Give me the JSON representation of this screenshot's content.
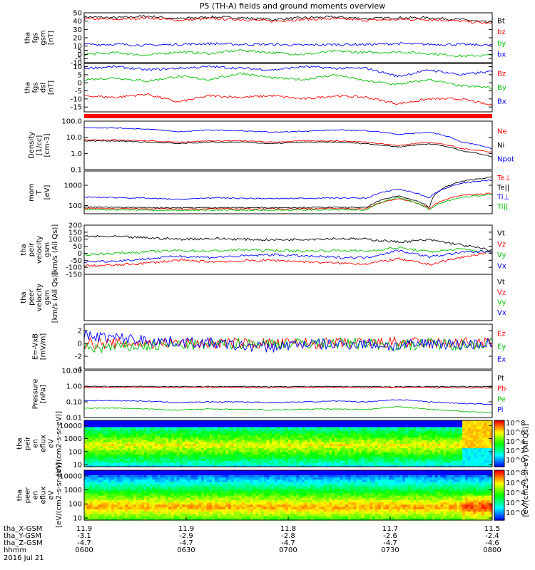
{
  "title": "P5 (TH-A) fields and ground moments overview",
  "chart_data": [
    {
      "type": "line",
      "panel": "fgs_gsm_mag",
      "ylabel": [
        "tha",
        "fgs",
        "gsm",
        "[nT]"
      ],
      "ylim": [
        -10,
        50
      ],
      "yticks": [
        -10,
        -5,
        0,
        5,
        10,
        20,
        30,
        40,
        50
      ],
      "series": [
        {
          "name": "Bt",
          "color": "#000000",
          "values": [
            45,
            44,
            46,
            43,
            45,
            44,
            42,
            44,
            45,
            43,
            44,
            44,
            42,
            38
          ]
        },
        {
          "name": "bz",
          "color": "#ff0000",
          "values": [
            43,
            42,
            44,
            41,
            43,
            42,
            40,
            42,
            43,
            41,
            42,
            42,
            40,
            37
          ]
        },
        {
          "name": "by",
          "color": "#00c000",
          "values": [
            0,
            2,
            -1,
            3,
            1,
            5,
            2,
            0,
            4,
            2,
            3,
            1,
            -2,
            -1
          ]
        },
        {
          "name": "bx",
          "color": "#0000ff",
          "values": [
            12,
            12,
            11,
            12,
            13,
            12,
            12,
            11,
            12,
            12,
            13,
            12,
            12,
            11
          ]
        }
      ]
    },
    {
      "type": "line",
      "panel": "fgs_dsl",
      "ylabel": [
        "tha",
        "fgs",
        "dsl",
        "[nT]"
      ],
      "ylim": [
        -18,
        12
      ],
      "yticks": [
        -15,
        -10,
        -5,
        0,
        5,
        10
      ],
      "series": [
        {
          "name": "Bz",
          "color": "#ff0000",
          "values": [
            -8,
            -9,
            -7,
            -12,
            -8,
            -9,
            -8,
            -10,
            -8,
            -9,
            -13,
            -10,
            -10,
            -14
          ]
        },
        {
          "name": "By",
          "color": "#00c000",
          "values": [
            2,
            3,
            1,
            4,
            2,
            6,
            3,
            2,
            5,
            1,
            -1,
            2,
            -2,
            -3
          ]
        },
        {
          "name": "Bx",
          "color": "#0000ff",
          "values": [
            9,
            10,
            8,
            9,
            10,
            9,
            8,
            10,
            9,
            9,
            4,
            8,
            5,
            7
          ]
        }
      ]
    },
    {
      "type": "line",
      "panel": "density",
      "ylabel": [
        "Density",
        "[1/cc]",
        "[cm-3]"
      ],
      "ylim": [
        0.1,
        100
      ],
      "log": true,
      "yticks": [
        0.1,
        1.0,
        10.0,
        100.0
      ],
      "ytick_labels": [
        "0.1",
        "1.0",
        "10.0",
        "100.0"
      ],
      "series": [
        {
          "name": "Ne",
          "color": "#ff0000",
          "values": [
            7,
            7,
            6,
            5,
            6,
            6,
            5,
            6,
            6,
            5,
            3,
            5,
            2,
            1.2
          ]
        },
        {
          "name": "Ni",
          "color": "#000000",
          "values": [
            6,
            6,
            5,
            4,
            5,
            5,
            4,
            5,
            5,
            4,
            2.5,
            4,
            1.5,
            0.6
          ]
        },
        {
          "name": "Npot",
          "color": "#0000ff",
          "values": [
            40,
            38,
            32,
            22,
            28,
            25,
            20,
            24,
            28,
            26,
            15,
            20,
            5,
            2
          ]
        }
      ]
    },
    {
      "type": "line",
      "panel": "temperature",
      "ylabel": [
        "mom",
        "T",
        "[eV]"
      ],
      "ylim": [
        40,
        5000
      ],
      "log": true,
      "yticks": [
        100,
        1000
      ],
      "ytick_labels": [
        "100",
        "1000"
      ],
      "series": [
        {
          "name": "Te⊥",
          "color": "#ff0000",
          "values": [
            75,
            72,
            70,
            68,
            70,
            69,
            70,
            71,
            72,
            70,
            220,
            70,
            330,
            400
          ]
        },
        {
          "name": "Te||",
          "color": "#000000",
          "values": [
            85,
            82,
            80,
            78,
            80,
            79,
            80,
            81,
            82,
            80,
            300,
            80,
            1500,
            2500
          ]
        },
        {
          "name": "Ti⊥",
          "color": "#0000ff",
          "values": [
            260,
            250,
            230,
            200,
            240,
            230,
            220,
            230,
            240,
            230,
            650,
            230,
            1200,
            1800
          ]
        },
        {
          "name": "Ti||",
          "color": "#00c000",
          "values": [
            65,
            63,
            60,
            58,
            60,
            59,
            60,
            61,
            62,
            60,
            250,
            60,
            250,
            350
          ]
        }
      ]
    },
    {
      "type": "line",
      "panel": "peir_velocity",
      "ylabel": [
        "tha",
        "peir",
        "velocity",
        "gsm",
        "[km/s (All Qs)]"
      ],
      "ylim": [
        -150,
        200
      ],
      "yticks": [
        -150,
        -100,
        -50,
        0,
        50,
        100,
        150,
        200
      ],
      "series": [
        {
          "name": "Vt",
          "color": "#000000",
          "values": [
            120,
            118,
            110,
            100,
            105,
            100,
            95,
            100,
            105,
            100,
            80,
            95,
            60,
            20
          ]
        },
        {
          "name": "Vz",
          "color": "#ff0000",
          "values": [
            -90,
            -85,
            -70,
            -50,
            -60,
            -55,
            -50,
            -60,
            -70,
            -75,
            -40,
            -80,
            -30,
            10
          ]
        },
        {
          "name": "Vy",
          "color": "#00c000",
          "values": [
            -10,
            0,
            10,
            20,
            15,
            25,
            20,
            15,
            20,
            15,
            40,
            10,
            30,
            5
          ]
        },
        {
          "name": "Vx",
          "color": "#0000ff",
          "values": [
            -60,
            -55,
            -40,
            -20,
            -30,
            -20,
            -10,
            -20,
            -30,
            -30,
            20,
            -25,
            5,
            15
          ]
        }
      ]
    },
    {
      "type": "line",
      "panel": "peer_velocity",
      "ylabel": [
        "tha",
        "peer",
        "velocity",
        "gsm",
        "[km/s (All Qs)]"
      ],
      "series": [
        {
          "name": "Vt",
          "color": "#000000",
          "values": []
        },
        {
          "name": "Vz",
          "color": "#ff0000",
          "values": []
        },
        {
          "name": "Vy",
          "color": "#00c000",
          "values": []
        },
        {
          "name": "Vx",
          "color": "#0000ff",
          "values": []
        }
      ]
    },
    {
      "type": "line",
      "panel": "efield",
      "ylabel": [
        "E=-VxB",
        "[mV/m]"
      ],
      "ylim": [
        -4,
        3
      ],
      "yticks": [
        -4,
        -2,
        0,
        2
      ],
      "series": [
        {
          "name": "Ez",
          "color": "#ff0000",
          "values": [
            0,
            0,
            0,
            0.1,
            0,
            0,
            0,
            0,
            0,
            0,
            0.2,
            0,
            0.1,
            0
          ]
        },
        {
          "name": "Ey",
          "color": "#00c000",
          "values": [
            -0.8,
            -0.6,
            -0.4,
            -0.2,
            -0.2,
            0,
            0,
            0,
            0,
            0,
            -0.3,
            0,
            -0.2,
            0
          ]
        },
        {
          "name": "Ex",
          "color": "#0000ff",
          "values": [
            1.2,
            0.9,
            0.5,
            0.2,
            0.1,
            -0.4,
            -0.6,
            0,
            -0.2,
            0,
            -0.5,
            0.1,
            -0.2,
            0
          ]
        }
      ]
    },
    {
      "type": "line",
      "panel": "pressure",
      "ylabel": [
        "Pressure",
        "[nPa]"
      ],
      "ylim": [
        0.01,
        10
      ],
      "log": true,
      "yticks": [
        0.01,
        0.1,
        1.0,
        10.0
      ],
      "ytick_labels": [
        "0.01",
        "0.10",
        "1.00",
        "10.00"
      ],
      "series": [
        {
          "name": "Pt",
          "color": "#000000",
          "values": [
            0.95,
            0.95,
            0.94,
            0.93,
            0.94,
            0.94,
            0.93,
            0.94,
            0.95,
            0.94,
            0.9,
            0.94,
            0.93,
            0.92
          ]
        },
        {
          "name": "Pb",
          "color": "#ff0000",
          "values": [
            0.85,
            0.84,
            0.86,
            0.82,
            0.85,
            0.83,
            0.8,
            0.83,
            0.85,
            0.82,
            0.83,
            0.83,
            0.8,
            0.75
          ]
        },
        {
          "name": "Pe",
          "color": "#00c000",
          "values": [
            0.04,
            0.04,
            0.035,
            0.03,
            0.035,
            0.033,
            0.03,
            0.034,
            0.035,
            0.032,
            0.05,
            0.033,
            0.025,
            0.02
          ]
        },
        {
          "name": "Pi",
          "color": "#0000ff",
          "values": [
            0.12,
            0.12,
            0.11,
            0.09,
            0.1,
            0.1,
            0.09,
            0.1,
            0.11,
            0.1,
            0.14,
            0.1,
            0.08,
            0.07
          ]
        }
      ]
    },
    {
      "type": "heatmap",
      "panel": "peir_spectrogram",
      "ylabel": [
        "tha",
        "peir",
        "en",
        "eflux",
        "eV",
        "[eV/(cm2-s-sr-eV)]"
      ],
      "ylim": [
        7,
        25000
      ],
      "log": true,
      "yticks": [
        10,
        100,
        1000,
        10000
      ],
      "ytick_labels": [
        "10",
        "100",
        "1000",
        "10000"
      ],
      "colorbar_ticks": [
        "10^8",
        "10^6",
        "10^4",
        "10^2",
        "10^0"
      ]
    },
    {
      "type": "heatmap",
      "panel": "peer_spectrogram",
      "ylabel": [
        "tha",
        "peer",
        "en",
        "eflux",
        "eV",
        "[eV/(cm2-s-sr-eV)]"
      ],
      "ylim": [
        7,
        25000
      ],
      "log": true,
      "yticks": [
        10,
        100,
        1000,
        10000
      ],
      "ytick_labels": [
        "10",
        "100",
        "1000",
        "10000"
      ],
      "colorbar_ticks": [
        "10^8",
        "10^6",
        "10^4",
        "10^2",
        "10^0"
      ]
    }
  ],
  "colorbar_label": "[eV/(cm2-s-sr-eV) (All Qs)]",
  "ephemeris": {
    "rows": [
      {
        "label": "tha_X-GSM",
        "values": [
          "11.9",
          "11.9",
          "11.8",
          "11.7",
          "11.5"
        ]
      },
      {
        "label": "tha_Y-GSM",
        "values": [
          "-3.1",
          "-2.9",
          "-2.8",
          "-2.6",
          "-2.4"
        ]
      },
      {
        "label": "tha_Z-GSM",
        "values": [
          "-4.7",
          "-4.7",
          "-4.7",
          "-4.7",
          "-4.6"
        ]
      },
      {
        "label": "hhmm",
        "values": [
          "0600",
          "0630",
          "0700",
          "0730",
          "0800"
        ]
      }
    ],
    "date": "2016 Jul 21"
  }
}
